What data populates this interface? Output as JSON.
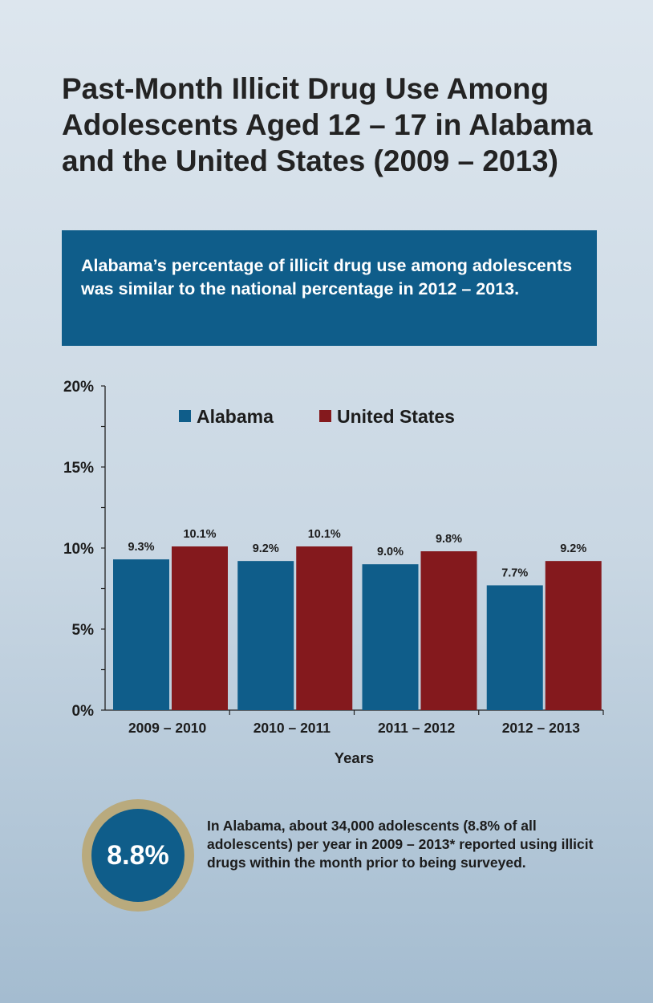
{
  "title": "Past-Month Illicit Drug Use Among Adolescents Aged 12 – 17 in Alabama and the United States (2009 – 2013)",
  "callout": "Alabama’s percentage of illicit drug use among adolescents was similar to the national percentage in 2012 – 2013.",
  "chart_data": {
    "type": "bar",
    "categories": [
      "2009 – 2010",
      "2010 – 2011",
      "2011 – 2012",
      "2012 – 2013"
    ],
    "series": [
      {
        "name": "Alabama",
        "values": [
          9.3,
          9.2,
          9.0,
          7.7
        ],
        "labels": [
          "9.3%",
          "9.2%",
          "9.0%",
          "7.7%"
        ],
        "color": "#0f5d8a"
      },
      {
        "name": "United States",
        "values": [
          10.1,
          10.1,
          9.8,
          9.2
        ],
        "labels": [
          "10.1%",
          "10.1%",
          "9.8%",
          "9.2%"
        ],
        "color": "#84191d"
      }
    ],
    "xlabel": "Years",
    "ylabel": "",
    "ylim": [
      0,
      20
    ],
    "yticks": [
      0,
      5,
      10,
      15,
      20
    ],
    "ytick_labels": [
      "0%",
      "5%",
      "10%",
      "15%",
      "20%"
    ],
    "legend_position": "top",
    "grid": false
  },
  "badge": {
    "value": "8.8%",
    "ring_color": "#b9aa7d",
    "fill_color": "#0f5d8a"
  },
  "note": "In Alabama, about 34,000 adolescents (8.8% of all adolescents) per year in 2009 – 2013* reported using illicit drugs within the month prior to being surveyed."
}
